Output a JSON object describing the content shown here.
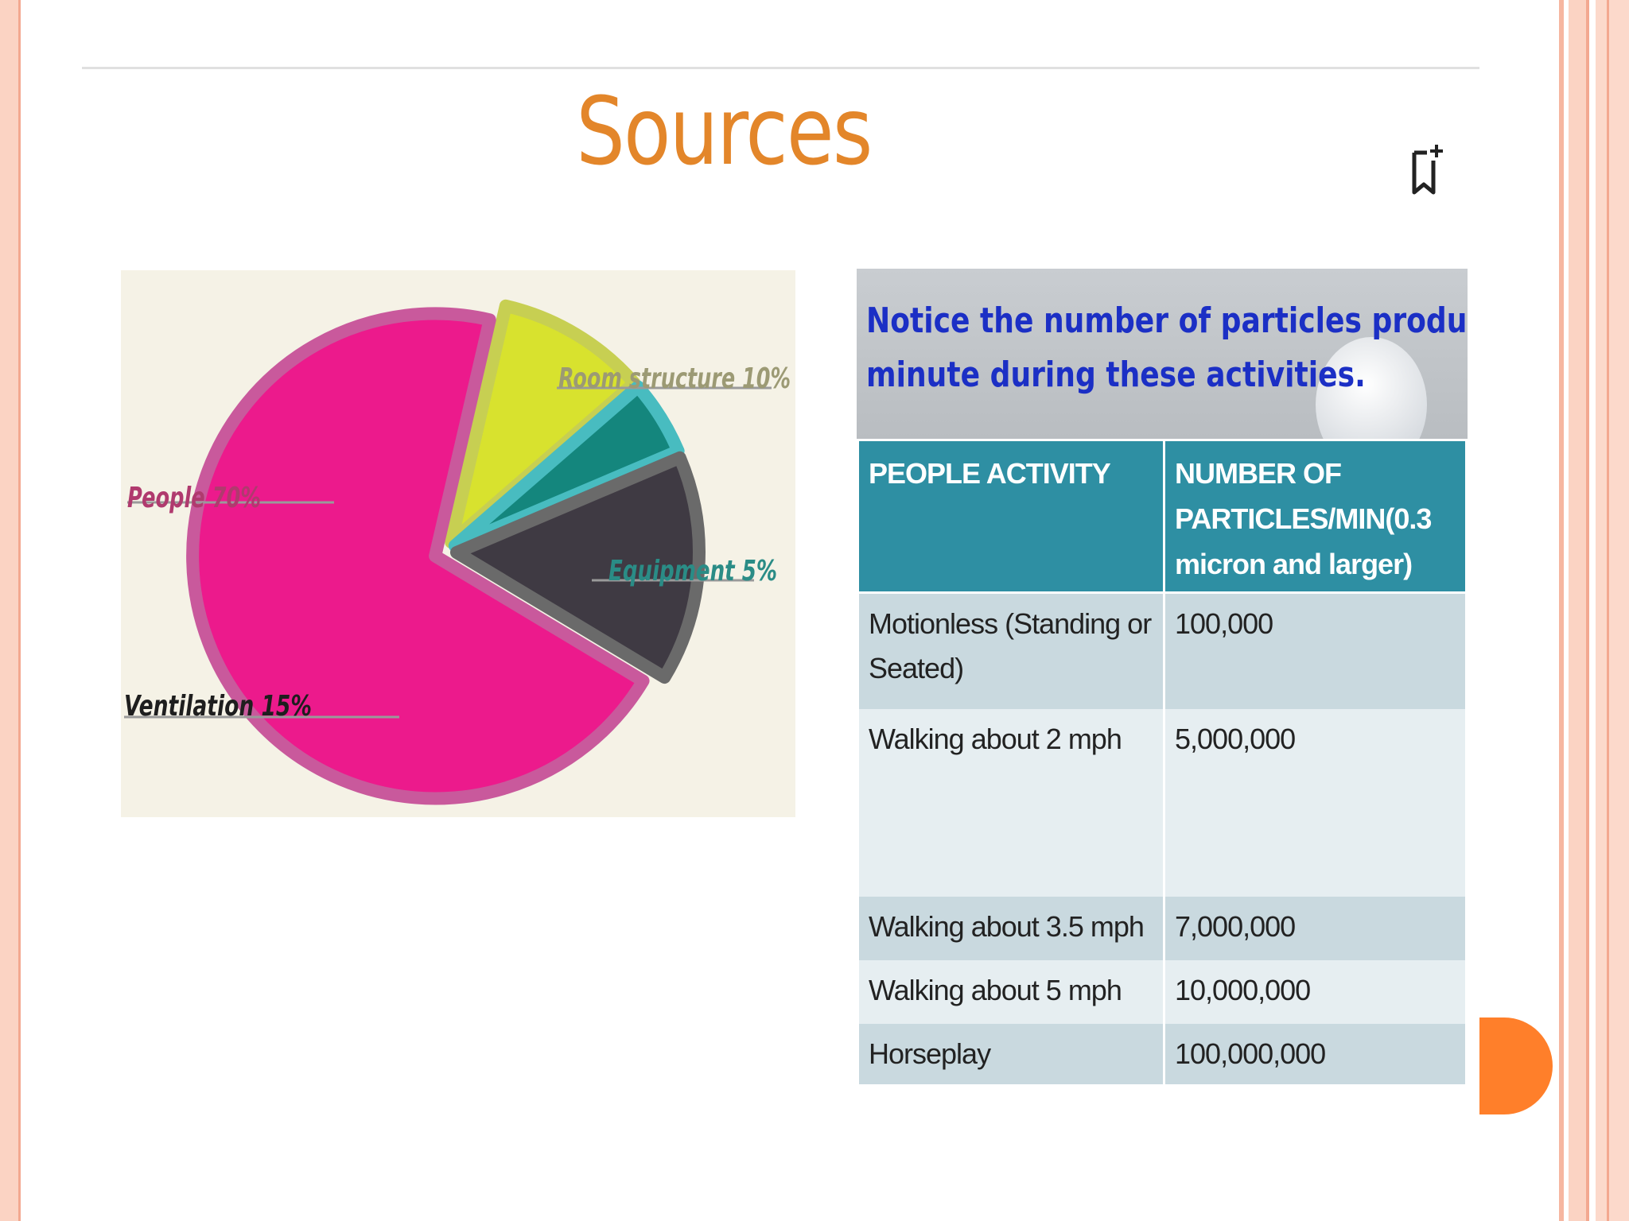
{
  "slide": {
    "title": "Sources",
    "bookmark_icon": "bookmark-add-icon",
    "colors": {
      "title": "#e3862a",
      "frame": "#fbd3c3",
      "accent_dot": "#ff7f2a",
      "table_header": "#2e8fa3",
      "notice_text": "#1b2fc5"
    }
  },
  "chart_data": {
    "type": "pie",
    "title": "",
    "slices": [
      {
        "label": "People 70%",
        "value": 70,
        "color": "#ec1a8c",
        "ring": "#c9599c",
        "label_color": "#b03a6e"
      },
      {
        "label": "Room structure 10%",
        "value": 10,
        "color": "#d8e22e",
        "ring": "#c7cf52",
        "label_color": "#9c9a74"
      },
      {
        "label": "Equipment 5%",
        "value": 5,
        "color": "#14867d",
        "ring": "#48bcc0",
        "label_color": "#2a8c86"
      },
      {
        "label": "Ventilation 15%",
        "value": 15,
        "color": "#3f3a43",
        "ring": "#6a6a6a",
        "label_color": "#1e1e1e"
      }
    ]
  },
  "table": {
    "notice": [
      "Notice the number of particles produced per",
      "minute during these activities."
    ],
    "headers": [
      "PEOPLE  ACTIVITY",
      "NUMBER OF PARTICLES/MIN(0.3 micron and larger)"
    ],
    "rows": [
      [
        "Motionless (Standing or Seated)",
        "100,000"
      ],
      [
        "Walking about 2 mph",
        "5,000,000"
      ],
      [
        "Walking about 3.5 mph",
        "7,000,000"
      ],
      [
        "Walking about 5 mph",
        "10,000,000"
      ],
      [
        "Horseplay",
        "100,000,000"
      ]
    ]
  }
}
